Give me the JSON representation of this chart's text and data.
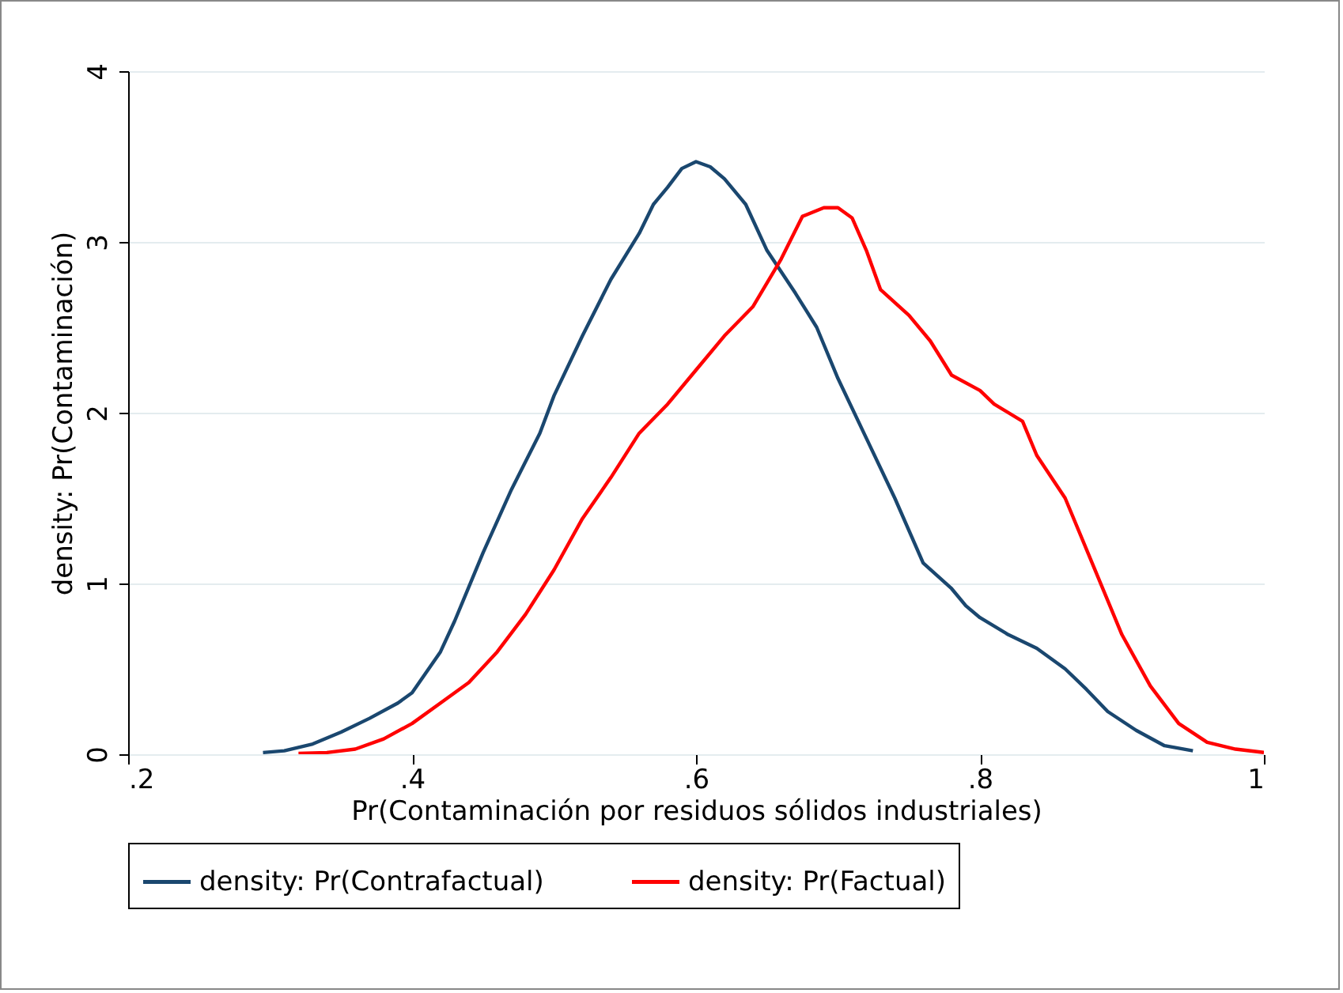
{
  "chart_data": {
    "type": "line",
    "xlabel": "Pr(Contaminación por residuos sólidos industriales)",
    "ylabel": "density: Pr(Contaminación)",
    "xlim": [
      0.2,
      1
    ],
    "xticks": [
      {
        "value": 0.2,
        "label": ".2"
      },
      {
        "value": 0.4,
        "label": ".4"
      },
      {
        "value": 0.6,
        "label": ".6"
      },
      {
        "value": 0.8,
        "label": ".8"
      },
      1
    ],
    "ylim": [
      0,
      4
    ],
    "yticks": [
      0,
      1,
      2,
      3,
      4
    ],
    "grid": "y",
    "legend": "bottom",
    "marker": "none",
    "line_style": "solid",
    "series": [
      {
        "name": "density: Pr(Contrafactual)",
        "color": "#1a476f",
        "x": [
          0.295,
          0.31,
          0.33,
          0.35,
          0.37,
          0.39,
          0.4,
          0.42,
          0.43,
          0.45,
          0.47,
          0.49,
          0.5,
          0.52,
          0.54,
          0.56,
          0.57,
          0.58,
          0.59,
          0.6,
          0.61,
          0.62,
          0.635,
          0.65,
          0.67,
          0.685,
          0.7,
          0.72,
          0.74,
          0.76,
          0.78,
          0.79,
          0.8,
          0.82,
          0.84,
          0.86,
          0.875,
          0.89,
          0.91,
          0.93,
          0.95
        ],
        "values": [
          0.01,
          0.02,
          0.06,
          0.13,
          0.21,
          0.3,
          0.36,
          0.6,
          0.78,
          1.18,
          1.55,
          1.88,
          2.1,
          2.45,
          2.78,
          3.05,
          3.22,
          3.32,
          3.43,
          3.47,
          3.44,
          3.37,
          3.22,
          2.95,
          2.7,
          2.5,
          2.2,
          1.85,
          1.5,
          1.12,
          0.97,
          0.87,
          0.8,
          0.7,
          0.62,
          0.5,
          0.38,
          0.25,
          0.14,
          0.05,
          0.02
        ]
      },
      {
        "name": "density: Pr(Factual)",
        "color": "#ff0000",
        "x": [
          0.32,
          0.34,
          0.36,
          0.38,
          0.4,
          0.42,
          0.44,
          0.46,
          0.48,
          0.5,
          0.52,
          0.54,
          0.56,
          0.58,
          0.6,
          0.62,
          0.64,
          0.66,
          0.675,
          0.69,
          0.7,
          0.71,
          0.72,
          0.73,
          0.75,
          0.765,
          0.78,
          0.8,
          0.81,
          0.83,
          0.84,
          0.86,
          0.88,
          0.9,
          0.92,
          0.94,
          0.96,
          0.98,
          1.0
        ],
        "values": [
          0.005,
          0.01,
          0.03,
          0.09,
          0.18,
          0.3,
          0.42,
          0.6,
          0.82,
          1.08,
          1.38,
          1.62,
          1.88,
          2.05,
          2.25,
          2.45,
          2.62,
          2.9,
          3.15,
          3.2,
          3.2,
          3.14,
          2.95,
          2.72,
          2.57,
          2.42,
          2.22,
          2.13,
          2.05,
          1.95,
          1.75,
          1.5,
          1.1,
          0.7,
          0.4,
          0.18,
          0.07,
          0.03,
          0.01
        ]
      }
    ]
  }
}
